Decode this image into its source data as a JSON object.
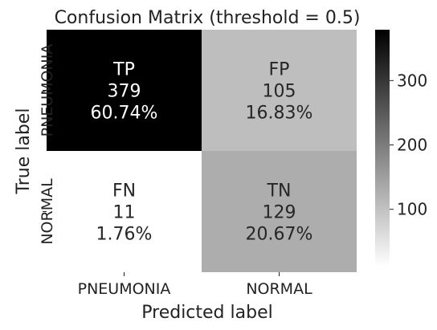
{
  "chart_data": {
    "type": "heatmap",
    "title": "Confusion Matrix (threshold = 0.5)",
    "xlabel": "Predicted label",
    "ylabel": "True label",
    "x_categories": [
      "PNEUMONIA",
      "NORMAL"
    ],
    "y_categories": [
      "PNEUMONIA",
      "NORMAL"
    ],
    "cells": [
      {
        "row": 0,
        "col": 0,
        "label": "TP",
        "count": 379,
        "percent": "60.74%"
      },
      {
        "row": 0,
        "col": 1,
        "label": "FP",
        "count": 105,
        "percent": "16.83%"
      },
      {
        "row": 1,
        "col": 0,
        "label": "FN",
        "count": 11,
        "percent": "1.76%"
      },
      {
        "row": 1,
        "col": 1,
        "label": "TN",
        "count": 129,
        "percent": "20.67%"
      }
    ],
    "colormap": "Greys",
    "color_range": [
      11,
      379
    ],
    "colorbar": {
      "ticks": [
        100,
        200,
        300
      ],
      "low_color": "#ffffff",
      "high_color": "#000000"
    }
  }
}
